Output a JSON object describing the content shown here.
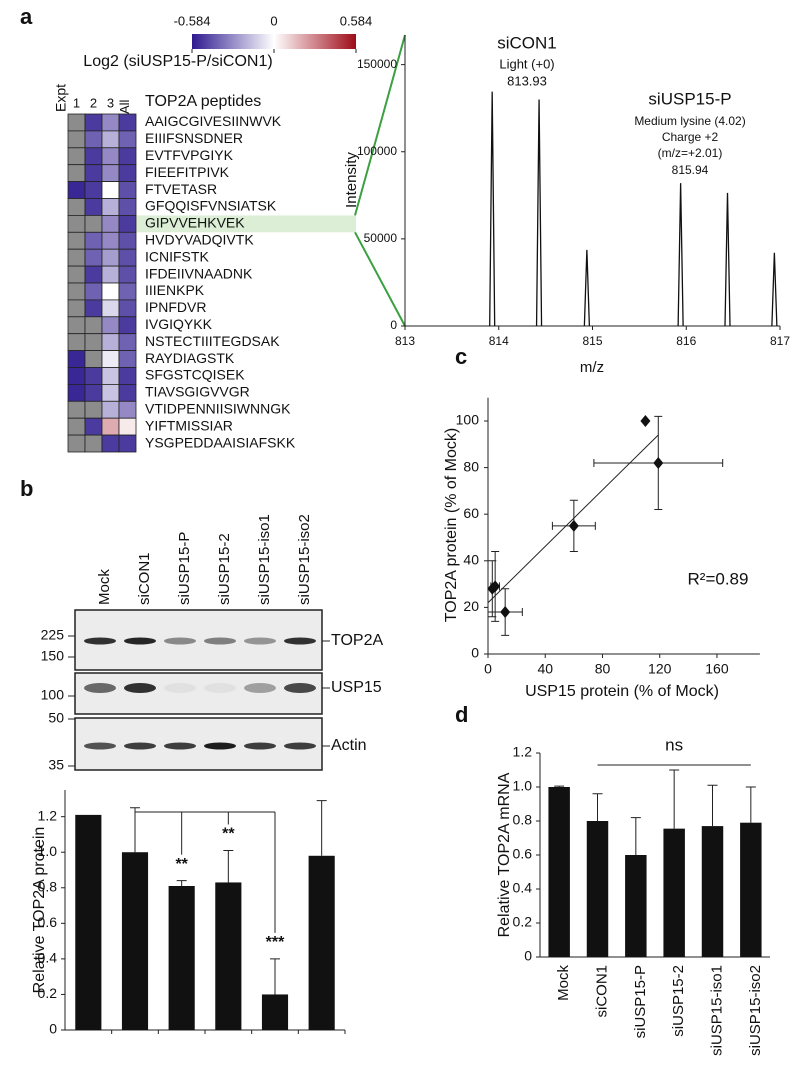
{
  "chart_data": [
    {
      "type": "heatmap",
      "panel": "a",
      "title": "Log2 (siUSP15-P/siCON1)",
      "clim": [
        -0.584,
        0.584
      ],
      "colorbar_ticks": [
        -0.584,
        0,
        0.584
      ],
      "colorscale": {
        "low": "#2e1a8f",
        "mid": "#ffffff",
        "high": "#9e0b18",
        "missing": "#8c8c8c"
      },
      "column_header": "Expt",
      "columns": [
        "1",
        "2",
        "3",
        "All"
      ],
      "row_header": "TOP2A peptides",
      "highlight_row": 6,
      "rows": [
        "AAIGCGIVESIINWVK",
        "EIIIFSNSDNER",
        "EVTFVPGIYK",
        "FIEEFITPIVK",
        "FTVETASR",
        "GFQQISFVNSIATSK",
        "GIPVVEHKVEK",
        "HVDYVADQIVTK",
        "ICNIFSTK",
        "IFDEIIVNAADNK",
        "IIIENKPK",
        "IPNFDVR",
        "IVGIQYKK",
        "NSTECTIIITEGDSAK",
        "RAYDIAGSTK",
        "SFGSTCQISEK",
        "TIAVSGIGVVGR",
        "VTIDPENNIISIWNNGK",
        "YIFTMISSIAR",
        "YSGPEDDAAISIAFSKK"
      ],
      "values": [
        [
          null,
          -0.5,
          -0.3,
          -0.5
        ],
        [
          null,
          -0.4,
          -0.2,
          -0.4
        ],
        [
          null,
          -0.5,
          -0.3,
          -0.5
        ],
        [
          null,
          -0.5,
          -0.3,
          -0.5
        ],
        [
          -0.55,
          -0.5,
          0,
          -0.45
        ],
        [
          null,
          -0.5,
          -0.2,
          -0.45
        ],
        [
          null,
          null,
          -0.3,
          -0.5
        ],
        [
          null,
          -0.4,
          -0.3,
          -0.45
        ],
        [
          null,
          -0.4,
          -0.25,
          -0.45
        ],
        [
          null,
          -0.5,
          -0.2,
          -0.45
        ],
        [
          null,
          -0.4,
          0,
          -0.4
        ],
        [
          null,
          -0.5,
          -0.1,
          -0.45
        ],
        [
          null,
          null,
          -0.3,
          -0.5
        ],
        [
          null,
          null,
          -0.2,
          -0.4
        ],
        [
          -0.55,
          null,
          -0.05,
          -0.4
        ],
        [
          -0.55,
          -0.5,
          -0.15,
          -0.5
        ],
        [
          -0.55,
          -0.5,
          -0.15,
          -0.5
        ],
        [
          null,
          null,
          -0.2,
          -0.3
        ],
        [
          null,
          -0.5,
          0.2,
          0.05
        ],
        [
          null,
          null,
          -0.5,
          -0.5
        ]
      ]
    },
    {
      "type": "spectrum",
      "xlabel": "m/z",
      "ylabel": "Intensity",
      "xlim": [
        813,
        817
      ],
      "xticks": [
        813,
        814,
        815,
        816,
        817
      ],
      "ylim": [
        0,
        167000
      ],
      "yticks": [
        0,
        50000,
        100000,
        150000
      ],
      "series": [
        {
          "color": "#111111",
          "x": [
            813.93,
            814.43,
            814.94,
            815.94,
            816.44,
            816.94
          ],
          "values": [
            134500,
            130000,
            43700,
            82000,
            76400,
            42000
          ]
        }
      ],
      "annotations": [
        "siCON1",
        "Light (+0)",
        "813.93",
        "siUSP15-P",
        "Medium lysine (4.02)",
        "Charge +2",
        "(m/z=+2.01)",
        "815.94"
      ]
    },
    {
      "type": "blot",
      "panel": "b",
      "lanes": [
        "Mock",
        "siCON1",
        "siUSP15-P",
        "siUSP15-2",
        "siUSP15-iso1",
        "siUSP15-iso2"
      ],
      "blots": [
        {
          "name": "TOP2A",
          "markers": [
            225,
            150
          ]
        },
        {
          "name": "USP15",
          "markers": [
            100
          ]
        },
        {
          "name": "Actin",
          "markers": [
            50,
            35
          ]
        }
      ]
    },
    {
      "type": "bar",
      "ylabel": "Relative TOP2A protein",
      "categories": [
        null,
        null,
        null,
        null,
        null,
        null
      ],
      "color": "#111111",
      "values": [
        1.21,
        1.0,
        0.81,
        0.83,
        0.2,
        0.98
      ],
      "errors": [
        null,
        0.25,
        0.03,
        0.18,
        0.2,
        0.31
      ],
      "significance": [
        null,
        null,
        "**",
        "**",
        "***",
        null
      ],
      "ylim": [
        0,
        1.35
      ],
      "yticks": [
        0,
        0.2,
        0.4,
        0.6,
        0.8,
        {
          "value": 1,
          "label": "1.0"
        },
        1.2
      ]
    },
    {
      "type": "scatter",
      "panel": "c",
      "xlabel": "USP15 protein (% of Mock)",
      "ylabel": "TOP2A protein (% of Mock)",
      "annotation": "R²=0.89",
      "xlim": [
        0,
        190
      ],
      "xticks": [
        0,
        40,
        80,
        120,
        160
      ],
      "ylim": [
        0,
        110
      ],
      "yticks": [
        0,
        20,
        40,
        60,
        80,
        100
      ],
      "series": [
        {
          "color": "#111111",
          "x": [
            110,
            119,
            60,
            12,
            5,
            3
          ],
          "y": [
            100,
            82,
            55,
            18,
            29,
            28
          ],
          "xerr": [
            null,
            45,
            15,
            12,
            3,
            null
          ],
          "yerr": [
            null,
            20,
            11,
            10,
            15,
            12
          ]
        }
      ],
      "trendline": {
        "x": [
          0,
          119
        ],
        "y": [
          22,
          94
        ]
      }
    },
    {
      "type": "bar",
      "panel": "d",
      "ylabel": "Relative TOP2A mRNA",
      "annotation": "ns",
      "color": "#111111",
      "categories": [
        "Mock",
        "siCON1",
        "siUSP15-P",
        "siUSP15-2",
        "siUSP15-iso1",
        "siUSP15-iso2"
      ],
      "values": [
        1.0,
        0.8,
        0.6,
        0.755,
        0.77,
        0.79
      ],
      "errors": [
        0.005,
        0.16,
        0.22,
        0.345,
        0.24,
        0.21
      ],
      "ylim": [
        0,
        1.2
      ],
      "yticks": [
        0,
        0.2,
        0.4,
        0.6,
        0.8,
        {
          "value": 1,
          "label": "1.0"
        },
        1.2
      ]
    }
  ]
}
